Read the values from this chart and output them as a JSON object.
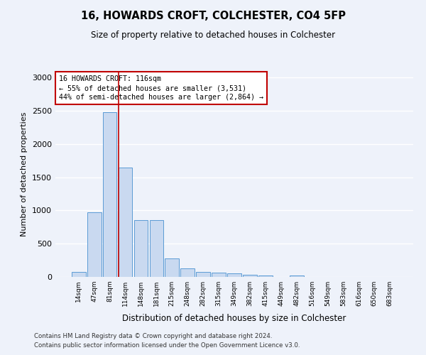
{
  "title1": "16, HOWARDS CROFT, COLCHESTER, CO4 5FP",
  "title2": "Size of property relative to detached houses in Colchester",
  "xlabel": "Distribution of detached houses by size in Colchester",
  "ylabel": "Number of detached properties",
  "categories": [
    "14sqm",
    "47sqm",
    "81sqm",
    "114sqm",
    "148sqm",
    "181sqm",
    "215sqm",
    "248sqm",
    "282sqm",
    "315sqm",
    "349sqm",
    "382sqm",
    "415sqm",
    "449sqm",
    "482sqm",
    "516sqm",
    "549sqm",
    "583sqm",
    "616sqm",
    "650sqm",
    "683sqm"
  ],
  "values": [
    70,
    975,
    2475,
    1650,
    850,
    850,
    275,
    130,
    75,
    60,
    50,
    30,
    25,
    0,
    25,
    0,
    0,
    0,
    0,
    0,
    0
  ],
  "bar_color": "#c9d9f0",
  "bar_edge_color": "#5b9bd5",
  "vline_color": "#c00000",
  "annotation_text": "16 HOWARDS CROFT: 116sqm\n← 55% of detached houses are smaller (3,531)\n44% of semi-detached houses are larger (2,864) →",
  "annotation_box_color": "white",
  "annotation_box_edge": "#c00000",
  "ylim": [
    0,
    3100
  ],
  "yticks": [
    0,
    500,
    1000,
    1500,
    2000,
    2500,
    3000
  ],
  "footer1": "Contains HM Land Registry data © Crown copyright and database right 2024.",
  "footer2": "Contains public sector information licensed under the Open Government Licence v3.0.",
  "bg_color": "#eef2fa",
  "grid_color": "#ffffff",
  "vline_xindex": 2.575
}
